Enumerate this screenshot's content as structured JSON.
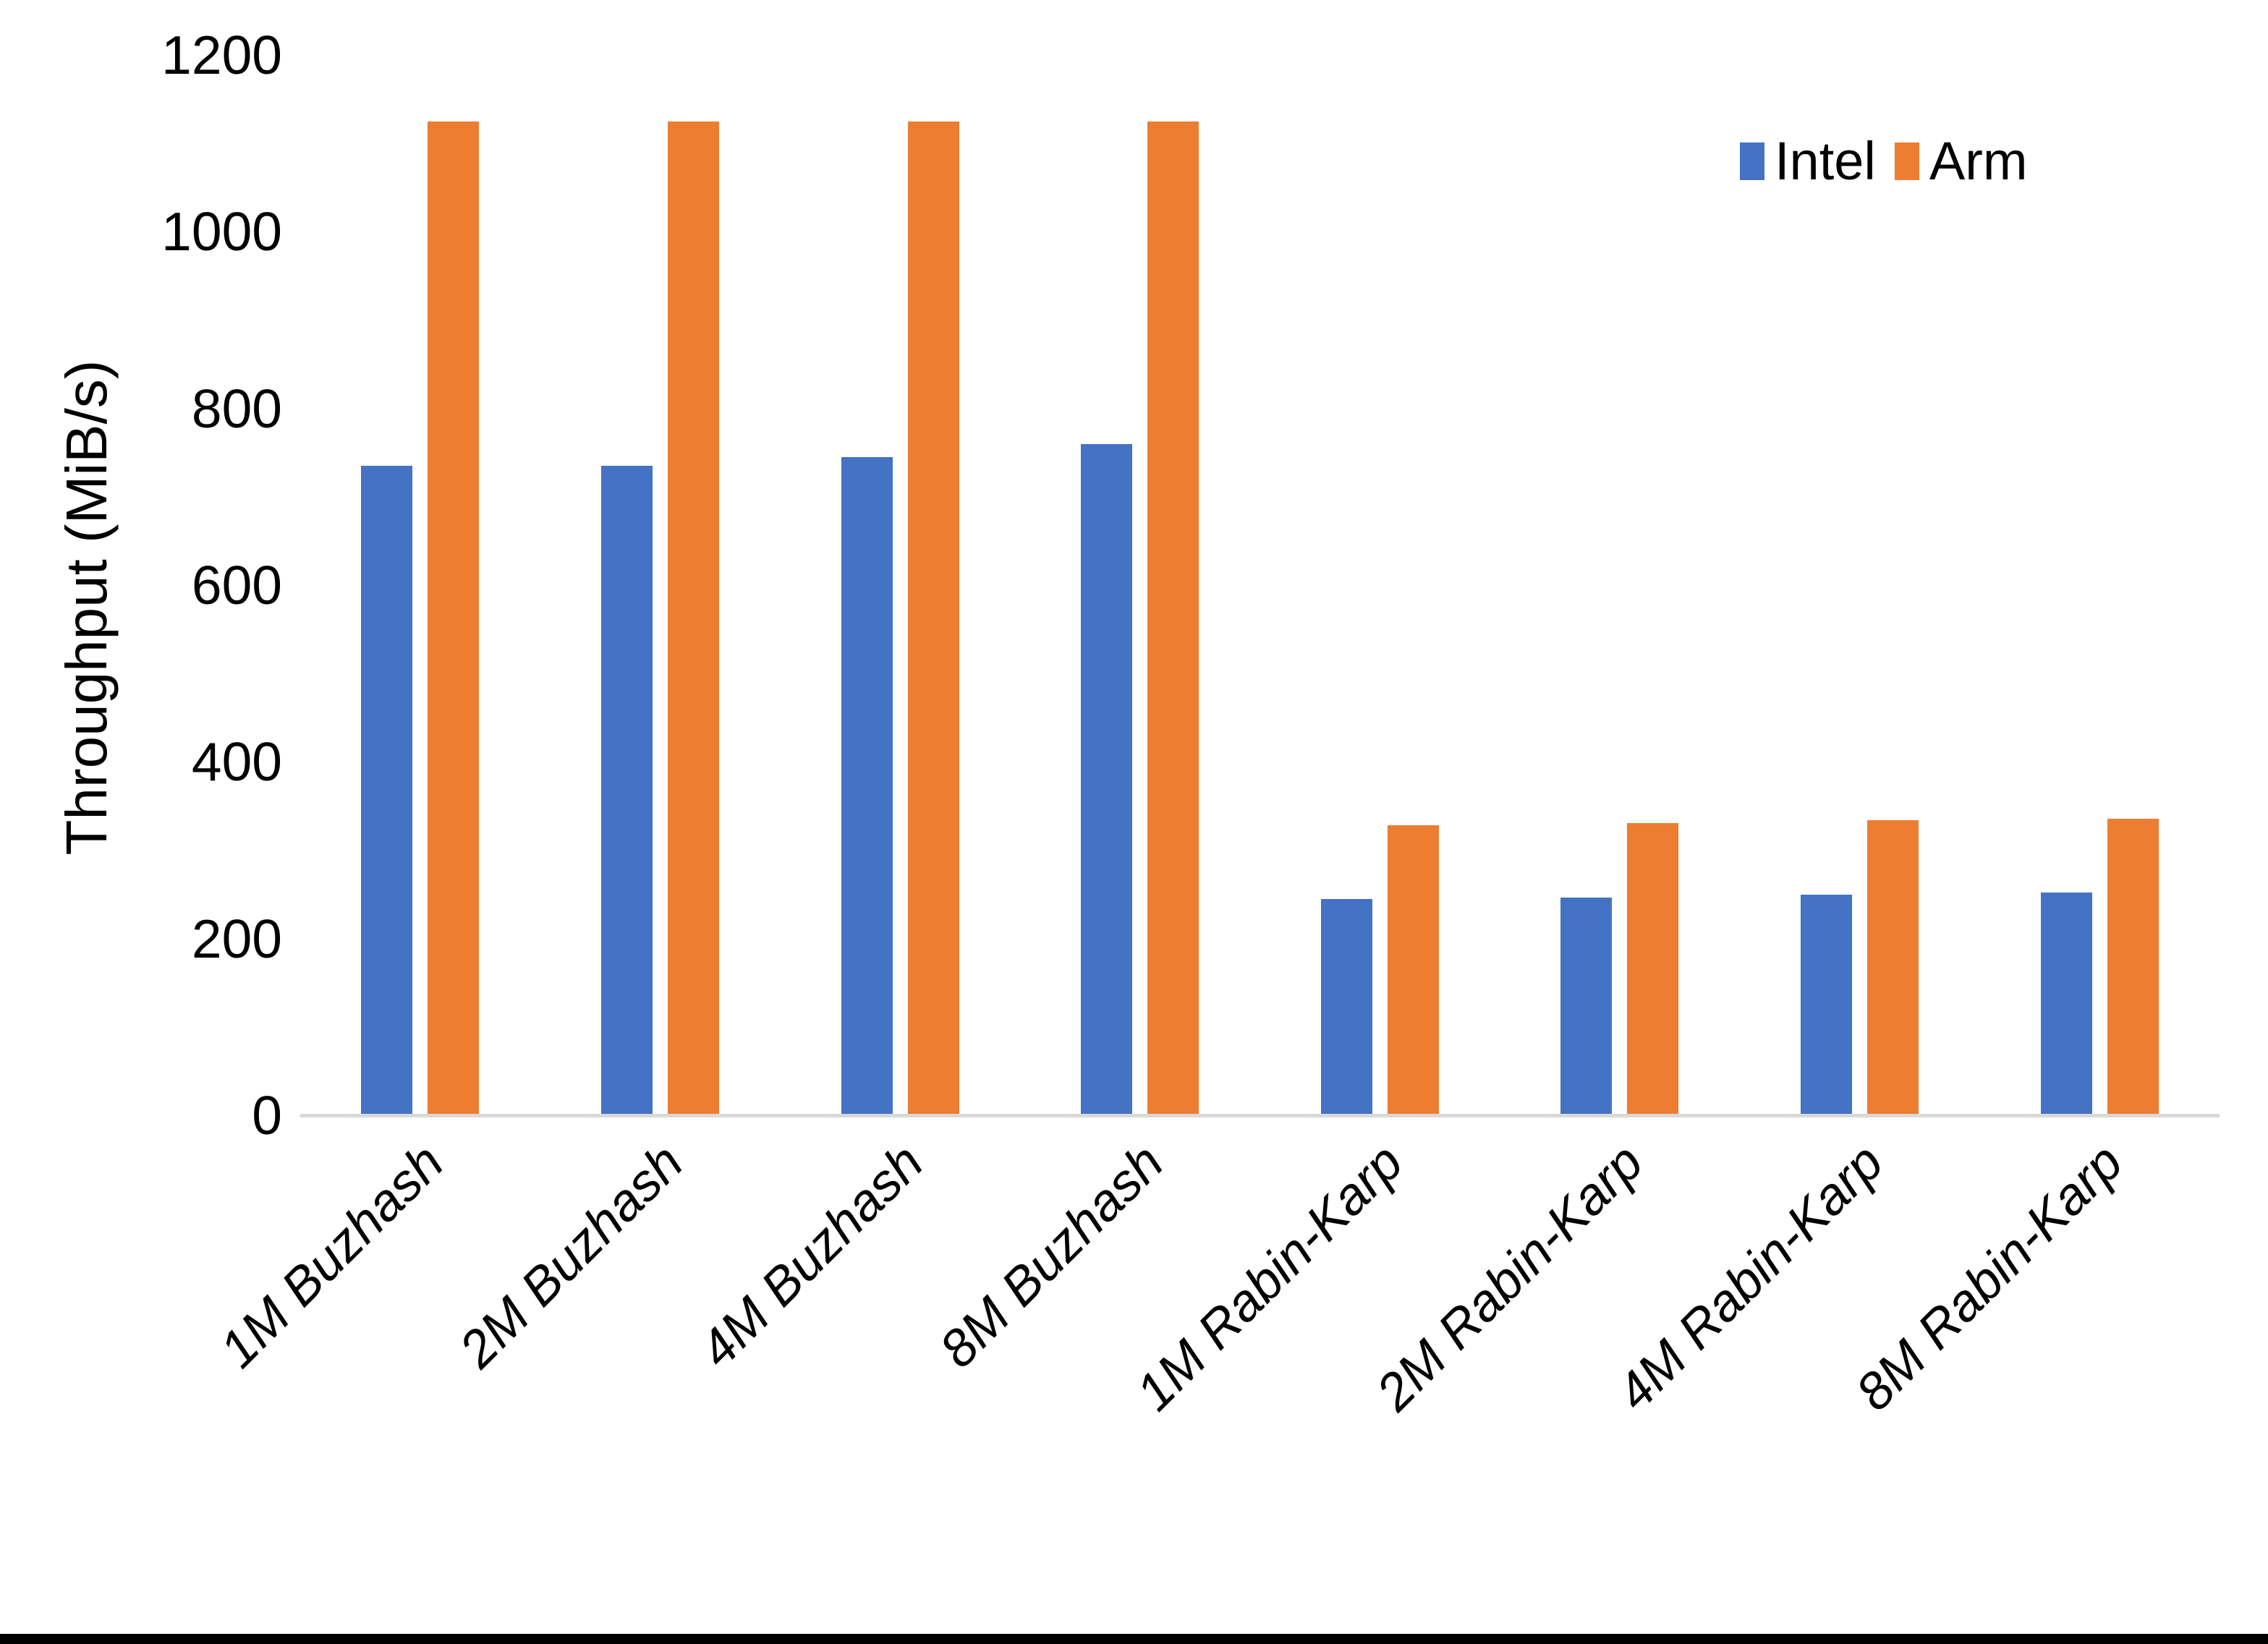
{
  "chart_data": {
    "type": "bar",
    "title": "",
    "xlabel": "",
    "ylabel": "Throughput (MiB/s)",
    "ylim": [
      0,
      1200
    ],
    "yticks": [
      0,
      200,
      400,
      600,
      800,
      1000,
      1200
    ],
    "grid": false,
    "legend_position": "top-right",
    "categories": [
      "1M Buzhash",
      "2M Buzhash",
      "4M Buzhash",
      "8M Buzhash",
      "1M Rabin-Karp",
      "2M Rabin-Karp",
      "4M Rabin-Karp",
      "8M Rabin-Karp"
    ],
    "series": [
      {
        "name": "Intel",
        "color": "#4472C4",
        "values": [
          735,
          735,
          745,
          760,
          245,
          246,
          250,
          252
        ]
      },
      {
        "name": "Arm",
        "color": "#ED7D31",
        "values": [
          1125,
          1125,
          1125,
          1125,
          328,
          331,
          334,
          336
        ]
      }
    ],
    "colors": {
      "axis_line": "#D9D9D9",
      "text": "#000000",
      "background": "#ffffff",
      "bottom_border": "#000000"
    }
  }
}
